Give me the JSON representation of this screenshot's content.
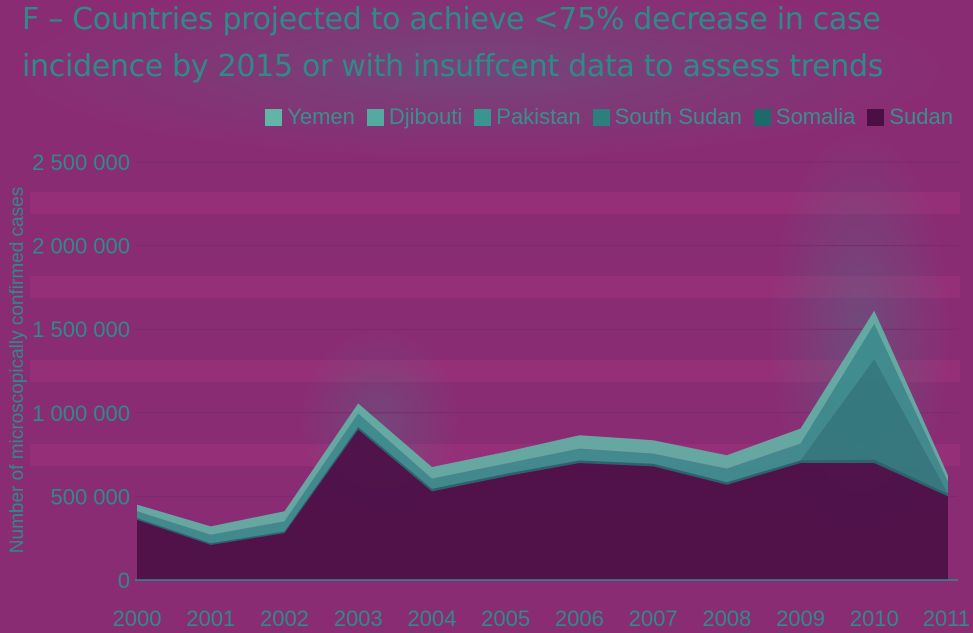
{
  "title_line1": "F – Countries projected to achieve <75% decrease in case",
  "title_line2": "incidence by 2015 or with insuffcent data to assess trends",
  "chart_data": {
    "type": "area",
    "title": "F – Countries projected to achieve <75% decrease in case incidence by 2015 or with insuffcent data to assess trends",
    "xlabel": "",
    "ylabel": "Number of microscopically confirmed cases",
    "x": [
      "2000",
      "2001",
      "2002",
      "2003",
      "2004",
      "2005",
      "2006",
      "2007",
      "2008",
      "2009",
      "2010",
      "2011"
    ],
    "ylim": [
      0,
      2500000
    ],
    "y_ticks": [
      0,
      500000,
      1000000,
      1500000,
      2000000,
      2500000
    ],
    "y_tick_labels": [
      "0",
      "500 000",
      "1 000 000",
      "1 500 000",
      "2 000 000",
      "2 500 000"
    ],
    "grid": true,
    "legend_position": "top-right",
    "stacked": true,
    "series": [
      {
        "name": "Sudan",
        "color": "#4a1046",
        "values": [
          360000,
          210000,
          280000,
          900000,
          530000,
          620000,
          700000,
          680000,
          570000,
          700000,
          700000,
          500000
        ]
      },
      {
        "name": "Somalia",
        "color": "#1d6a6a",
        "values": [
          10000,
          10000,
          10000,
          15000,
          15000,
          15000,
          15000,
          15000,
          15000,
          15000,
          20000,
          15000
        ]
      },
      {
        "name": "South Sudan",
        "color": "#2d7f7e",
        "values": [
          0,
          0,
          0,
          0,
          0,
          0,
          0,
          0,
          0,
          0,
          600000,
          0
        ]
      },
      {
        "name": "Pakistan",
        "color": "#3a9490",
        "values": [
          40000,
          50000,
          60000,
          80000,
          60000,
          60000,
          70000,
          60000,
          80000,
          100000,
          210000,
          70000
        ]
      },
      {
        "name": "Djibouti",
        "color": "#55aaa0",
        "values": [
          1000,
          1000,
          1000,
          1000,
          1000,
          1000,
          1000,
          1000,
          1000,
          1000,
          1000,
          1000
        ]
      },
      {
        "name": "Yemen",
        "color": "#62b5a6",
        "values": [
          40000,
          50000,
          60000,
          60000,
          70000,
          70000,
          80000,
          80000,
          80000,
          90000,
          80000,
          40000
        ]
      }
    ]
  }
}
